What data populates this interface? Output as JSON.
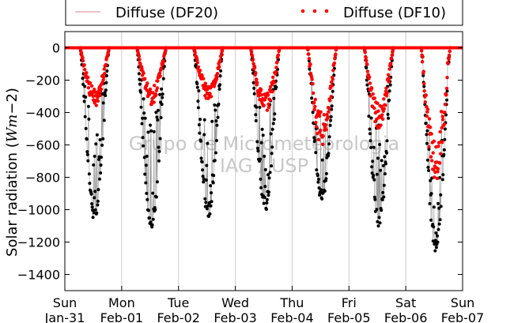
{
  "chart_data": {
    "type": "scatter",
    "title": "",
    "xlabel": "",
    "ylabel": "Solar radiation (Wm−2)",
    "ylabel_main": "Solar radiation",
    "ylabel_paren_open": "(",
    "ylabel_W": "W",
    "ylabel_m": "m",
    "ylabel_exp": "−2",
    "ylabel_paren_close": ")",
    "ylim": [
      -1500,
      100
    ],
    "yticks": [
      0,
      -200,
      -400,
      -600,
      -800,
      -1000,
      -1200,
      -1400
    ],
    "ytick_labels": [
      "0",
      "−200",
      "−400",
      "−600",
      "−800",
      "−1000",
      "−1200",
      "−1400"
    ],
    "xlim_days": [
      0,
      7
    ],
    "xticks": [
      {
        "day": 0,
        "weekday": "Sun",
        "date": "Jan-31"
      },
      {
        "day": 1,
        "weekday": "Mon",
        "date": "Feb-01"
      },
      {
        "day": 2,
        "weekday": "Tue",
        "date": "Feb-02"
      },
      {
        "day": 3,
        "weekday": "Wed",
        "date": "Feb-03"
      },
      {
        "day": 4,
        "weekday": "Thu",
        "date": "Feb-04"
      },
      {
        "day": 5,
        "weekday": "Fri",
        "date": "Feb-05"
      },
      {
        "day": 6,
        "weekday": "Sat",
        "date": "Feb-06"
      },
      {
        "day": 7,
        "weekday": "Sun",
        "date": "Feb-07"
      }
    ],
    "grid": "vertical",
    "legend_position": "top",
    "watermark": [
      "Grupo de Micrometeorologia",
      "IAG / USP"
    ],
    "series": [
      {
        "name": "Diffuse (DF20)",
        "style": "line",
        "color": "#d98080",
        "note": "Total/global black dots connected by thin grey line"
      },
      {
        "name": "Diffuse (DF10)",
        "style": "dots",
        "color": "#ff0000"
      }
    ],
    "daily": [
      {
        "day": 0,
        "total_min": -1070,
        "diffuse_min": -330
      },
      {
        "day": 1,
        "total_min": -1140,
        "diffuse_min": -320
      },
      {
        "day": 2,
        "total_min": -1060,
        "diffuse_min": -300
      },
      {
        "day": 3,
        "total_min": -1020,
        "diffuse_min": -380
      },
      {
        "day": 4,
        "total_min": -960,
        "diffuse_min": -560
      },
      {
        "day": 5,
        "total_min": -1130,
        "diffuse_min": -460
      },
      {
        "day": 6,
        "total_min": -1270,
        "diffuse_min": -770
      }
    ],
    "colors": {
      "total_dots": "#000000",
      "total_line": "#999999",
      "diffuse_dots": "#ff0000",
      "grid": "#cccccc",
      "axis": "#000000"
    }
  }
}
